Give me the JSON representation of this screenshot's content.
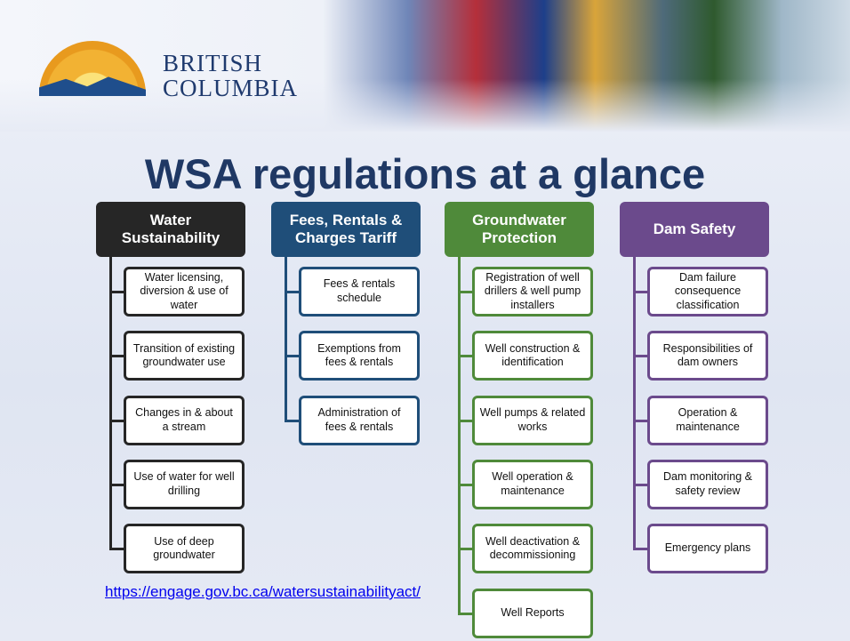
{
  "header": {
    "logo_line1": "BRITISH",
    "logo_line2": "COLUMBIA"
  },
  "title": "WSA regulations at a glance",
  "columns": [
    {
      "title": "Water Sustainability",
      "color": "#262626",
      "items": [
        "Water licensing, diversion & use of water",
        "Transition of existing groundwater use",
        "Changes in & about a stream",
        "Use of water for well drilling",
        "Use of deep groundwater"
      ]
    },
    {
      "title": "Fees, Rentals & Charges Tariff",
      "color": "#1f4e79",
      "items": [
        "Fees & rentals schedule",
        "Exemptions from fees & rentals",
        "Administration of fees & rentals"
      ]
    },
    {
      "title": "Groundwater Protection",
      "color": "#4f8a3a",
      "items": [
        "Registration of well drillers & well pump installers",
        "Well construction & identification",
        "Well pumps & related works",
        "Well operation & maintenance",
        "Well deactivation & decommissioning",
        "Well Reports"
      ]
    },
    {
      "title": "Dam Safety",
      "color": "#6b4a8c",
      "items": [
        "Dam failure consequence classification",
        "Responsibilities of dam owners",
        "Operation & maintenance",
        "Dam monitoring & safety review",
        "Emergency plans"
      ]
    }
  ],
  "link": "https://engage.gov.bc.ca/watersustainabilityact/"
}
